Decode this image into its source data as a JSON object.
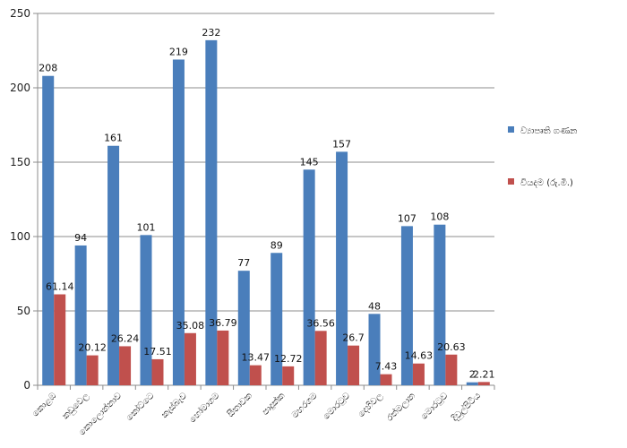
{
  "chart_data": {
    "type": "bar",
    "categories": [
      "කොළඹ",
      "කඩුවෙල",
      "කොලොන්නාව",
      "කෝට්ටෙ",
      "කැස්බෑව",
      "හෝමාගම",
      "සීතාවක",
      "පාදුක්ක",
      "මහරගම",
      "මොරටුව",
      "දෙහිවල",
      "රත්මලාන",
      "මොරටුව",
      "දිවුල්පිටිය"
    ],
    "series": [
      {
        "name": "ව්‍යාපෘති ගණන",
        "color": "#4a7ebb",
        "values": [
          208,
          94,
          161,
          101,
          219,
          232,
          77,
          89,
          145,
          157,
          48,
          107,
          108,
          2
        ],
        "labels": [
          "208",
          "94",
          "161",
          "101",
          "219",
          "232",
          "77",
          "89",
          "145",
          "157",
          "48",
          "107",
          "108",
          "2"
        ]
      },
      {
        "name": "වියදම (රු.මි.)",
        "color": "#c0504d",
        "values": [
          61.14,
          20.12,
          26.24,
          17.51,
          35.08,
          36.79,
          13.47,
          12.72,
          36.56,
          26.7,
          7.43,
          14.63,
          20.63,
          2.21
        ],
        "labels": [
          "61.14",
          "20.12",
          "26.24",
          "17.51",
          "35.08",
          "36.79",
          "13.47",
          "12.72",
          "36.56",
          "26.7",
          "7.43",
          "14.63",
          "20.63",
          "2.21"
        ]
      }
    ],
    "yticks": [
      "0",
      "50",
      "100",
      "150",
      "200",
      "250"
    ],
    "ylim": [
      0,
      250
    ],
    "grid": true,
    "legend": "right",
    "legend_entries": [
      "ව්‍යාපෘති ගණන",
      "වියදම (රු.මි.)"
    ]
  }
}
